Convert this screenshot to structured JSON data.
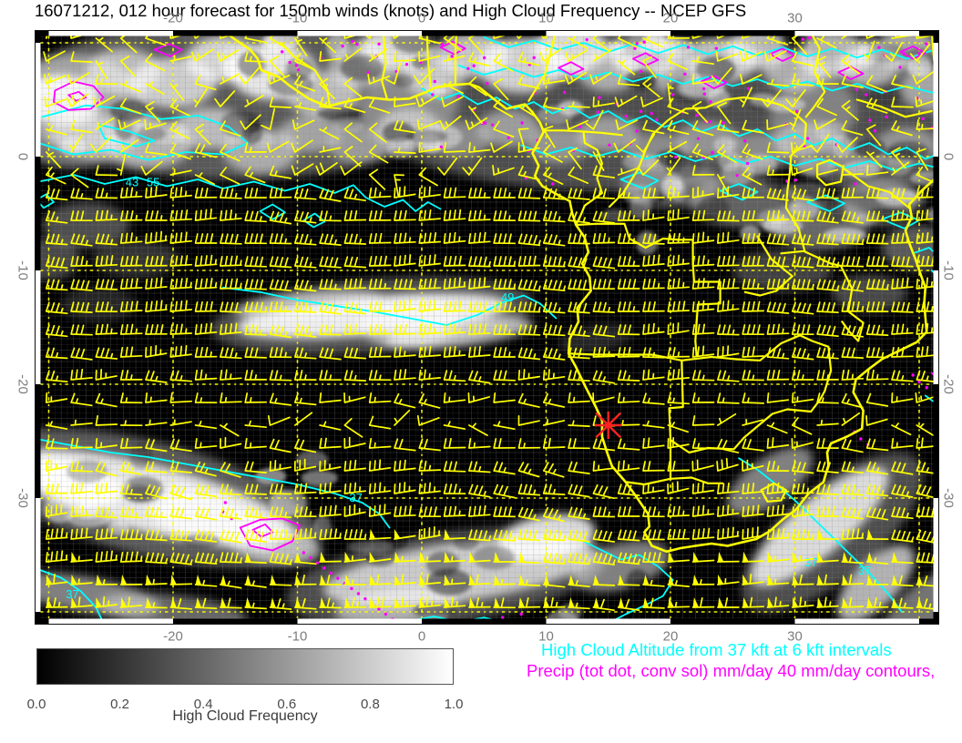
{
  "title": "16071212, 012 hour forecast for 150mb winds (knots) and High Cloud Frequency -- NCEP GFS",
  "axes": {
    "lon_ticks": [
      {
        "label": "-20",
        "value": -20
      },
      {
        "label": "-10",
        "value": -10
      },
      {
        "label": "0",
        "value": 0
      },
      {
        "label": "10",
        "value": 10
      },
      {
        "label": "20",
        "value": 20
      },
      {
        "label": "30",
        "value": 30
      }
    ],
    "lat_ticks": [
      {
        "label": "0",
        "value": 0
      },
      {
        "label": "-10",
        "value": -10
      },
      {
        "label": "-20",
        "value": -20
      },
      {
        "label": "-30",
        "value": -30
      }
    ],
    "lon_range": [
      -31.1,
      41.6
    ],
    "lat_range": [
      11.1,
      -41.1
    ]
  },
  "colorbar": {
    "title": "High Cloud Frequency",
    "tick_labels": [
      {
        "label": "0.0",
        "value": 0.0
      },
      {
        "label": "0.2",
        "value": 0.2
      },
      {
        "label": "0.4",
        "value": 0.4
      },
      {
        "label": "0.6",
        "value": 0.6
      },
      {
        "label": "0.8",
        "value": 0.8
      },
      {
        "label": "1.0",
        "value": 1.0
      }
    ],
    "gradient": [
      "#000000",
      "#ffffff"
    ]
  },
  "legend": {
    "cloud_altitude": {
      "text": "High Cloud Altitude from 37 kft at 6 kft intervals",
      "color": "#00ffff"
    },
    "precip": {
      "text": "Precip (tot dot, conv sol) mm/day 40 mm/day contours,",
      "color": "#ff00ff"
    }
  },
  "map": {
    "marker": {
      "lon": 15.0,
      "lat": -23.6,
      "color": "#ff2222"
    },
    "contour_labels": [
      {
        "text": "43",
        "lon": -23.3,
        "lat": -2.6
      },
      {
        "text": "55",
        "lon": -21.6,
        "lat": -2.6
      },
      {
        "text": "49",
        "lon": 6.9,
        "lat": -12.7
      },
      {
        "text": "37",
        "lon": -5.3,
        "lat": -30.3
      },
      {
        "text": "37",
        "lon": -28.1,
        "lat": -38.8
      },
      {
        "text": "37",
        "lon": -31.2,
        "lat": -36.9
      },
      {
        "text": "37",
        "lon": 31.3,
        "lat": -36.0
      },
      {
        "text": "37",
        "lon": 35.6,
        "lat": -36.7
      }
    ],
    "wind_barbs": {
      "units": "knots",
      "grid": {
        "lon_start": -30.2,
        "lon_step": 2,
        "cols": 36,
        "lat_start": 10.4,
        "lat_step": -2,
        "rows": 26
      }
    },
    "grid_spacing_deg": 10,
    "graticule_spacing_deg": 1
  },
  "colors": {
    "wind_barb": "#ffff00",
    "coastline": "#ffff00",
    "dotted_grid": "#ffff00",
    "high_cloud_altitude_contour": "#00ffff",
    "precip_contour": "#ff00ff",
    "marker": "#ff2222",
    "map_background": "#000000",
    "page_background": "#ffffff",
    "title_text": "#000000",
    "axis_text": "#7d7d7d"
  }
}
